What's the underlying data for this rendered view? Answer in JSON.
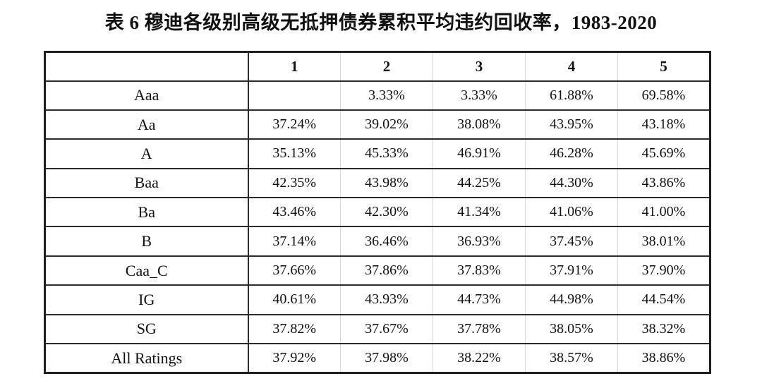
{
  "title": "表 6  穆迪各级别高级无抵押债券累积平均违约回收率，1983-2020",
  "table": {
    "corner_label": "",
    "column_headers": [
      "1",
      "2",
      "3",
      "4",
      "5"
    ],
    "rows": [
      {
        "label": "Aaa",
        "values": [
          "",
          "3.33%",
          "3.33%",
          "61.88%",
          "69.58%"
        ]
      },
      {
        "label": "Aa",
        "values": [
          "37.24%",
          "39.02%",
          "38.08%",
          "43.95%",
          "43.18%"
        ]
      },
      {
        "label": "A",
        "values": [
          "35.13%",
          "45.33%",
          "46.91%",
          "46.28%",
          "45.69%"
        ]
      },
      {
        "label": "Baa",
        "values": [
          "42.35%",
          "43.98%",
          "44.25%",
          "44.30%",
          "43.86%"
        ]
      },
      {
        "label": "Ba",
        "values": [
          "43.46%",
          "42.30%",
          "41.34%",
          "41.06%",
          "41.00%"
        ]
      },
      {
        "label": "B",
        "values": [
          "37.14%",
          "36.46%",
          "36.93%",
          "37.45%",
          "38.01%"
        ]
      },
      {
        "label": "Caa_C",
        "values": [
          "37.66%",
          "37.86%",
          "37.83%",
          "37.91%",
          "37.90%"
        ]
      },
      {
        "label": "IG",
        "values": [
          "40.61%",
          "43.93%",
          "44.73%",
          "44.98%",
          "44.54%"
        ]
      },
      {
        "label": "SG",
        "values": [
          "37.82%",
          "37.67%",
          "37.78%",
          "38.05%",
          "38.32%"
        ]
      },
      {
        "label": "All Ratings",
        "values": [
          "37.92%",
          "37.98%",
          "38.22%",
          "38.57%",
          "38.86%"
        ]
      }
    ]
  },
  "colors": {
    "background": "#ffffff",
    "text": "#111111",
    "border_dark": "#2b2b2b",
    "border_light": "#d9d9d9"
  }
}
